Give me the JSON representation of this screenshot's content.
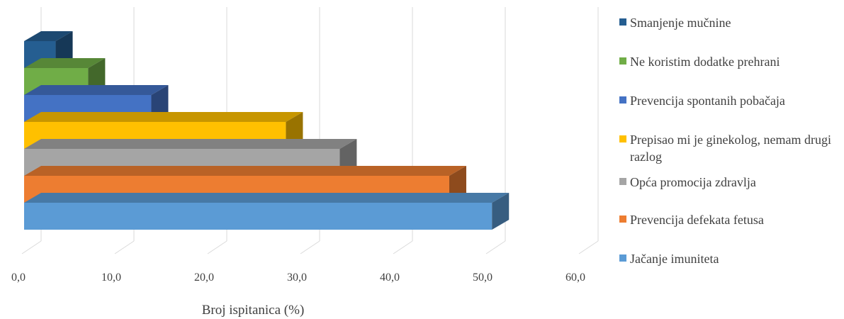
{
  "chart_data": {
    "type": "bar",
    "orientation": "horizontal",
    "style": "3d-clustered",
    "xlabel": "Broj ispitanica (%)",
    "ylabel": "",
    "xlim": [
      0,
      60
    ],
    "xticks": [
      "0,0",
      "10,0",
      "20,0",
      "30,0",
      "40,0",
      "50,0",
      "60,0"
    ],
    "grid": true,
    "legend_position": "right",
    "series": [
      {
        "name": "Jačanje imuniteta",
        "value": 50.4,
        "color": "#5B9BD5"
      },
      {
        "name": "Prevencija defekata fetusa",
        "value": 45.8,
        "color": "#ED7D31"
      },
      {
        "name": "Opća promocija zdravlja",
        "value": 34.0,
        "color": "#A5A5A5"
      },
      {
        "name": "Prepisao mi je ginekolog, nemam drugi razlog",
        "value": 28.2,
        "color": "#FFC000"
      },
      {
        "name": "Prevencija spontanih pobačaja",
        "value": 13.7,
        "color": "#4472C4"
      },
      {
        "name": "Ne koristim dodatke prehrani",
        "value": 6.9,
        "color": "#70AD47"
      },
      {
        "name": "Smanjenje mučnine",
        "value": 3.4,
        "color": "#255E91"
      }
    ]
  }
}
